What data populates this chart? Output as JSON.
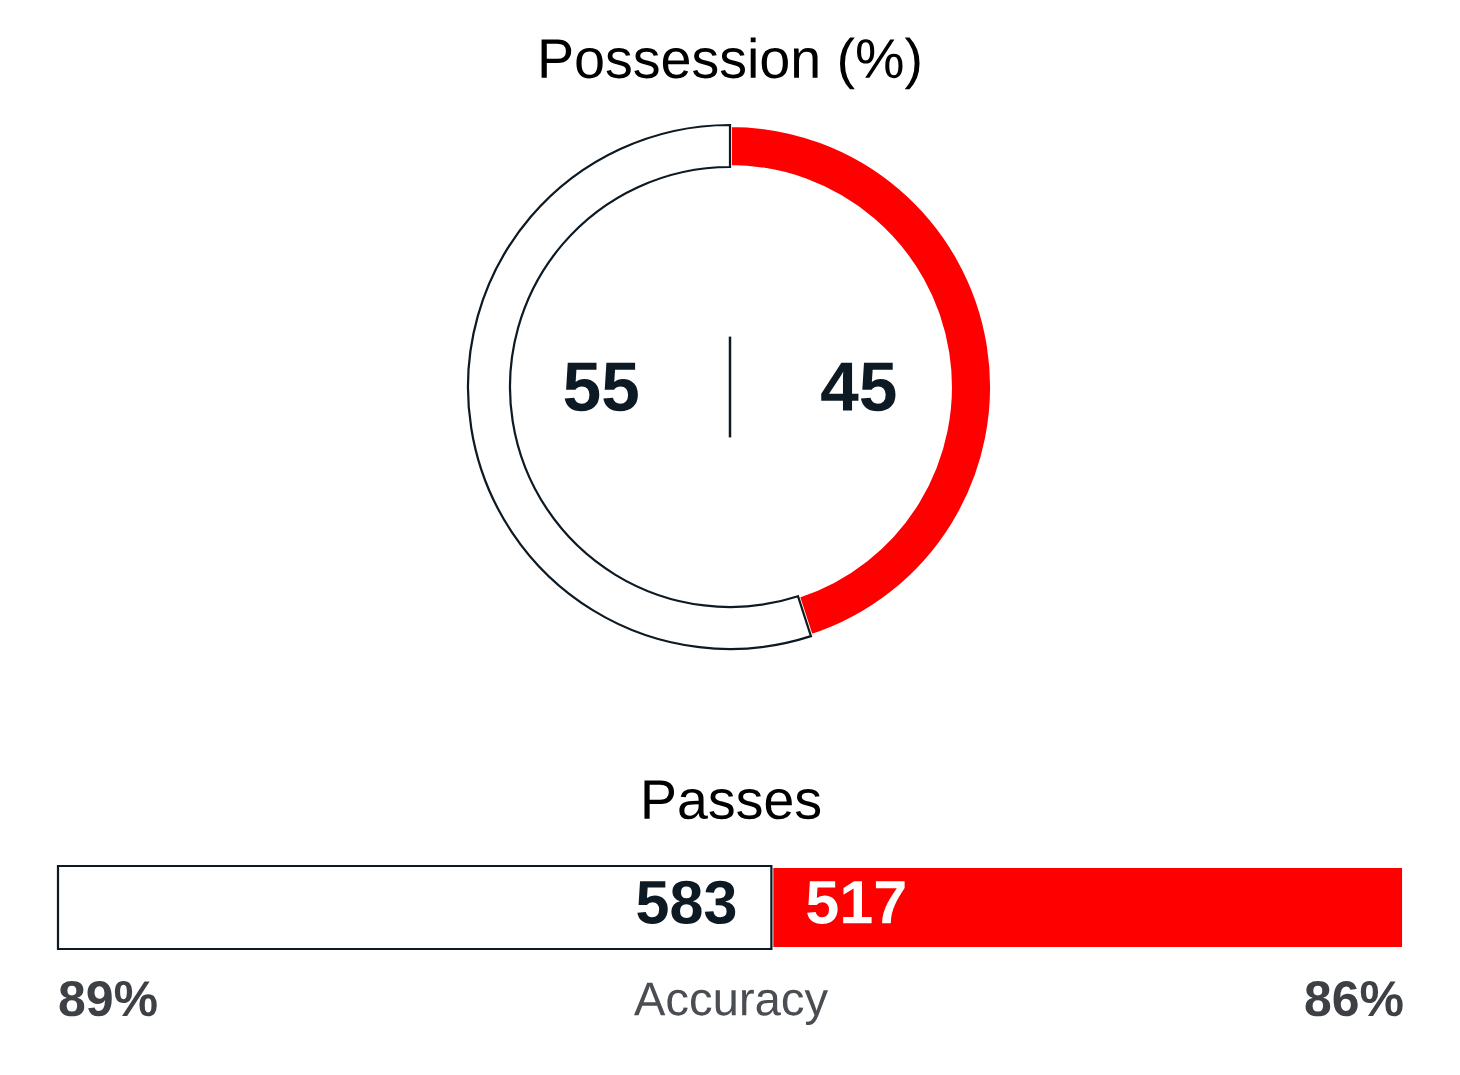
{
  "chart_data": [
    {
      "type": "donut",
      "title": "Possession (%)",
      "categories": [
        null,
        null
      ],
      "values": [
        55,
        45
      ],
      "colors": [
        "#ffffff",
        "#ff0000"
      ],
      "data_labels": true
    },
    {
      "type": "bar",
      "title": "Passes",
      "orientation": "horizontal",
      "stacked": true,
      "categories": [
        null
      ],
      "series": [
        {
          "color": "#ffffff",
          "values": [
            583
          ]
        },
        {
          "color": "#ff0000",
          "values": [
            517
          ]
        }
      ],
      "data_labels": true,
      "tick_labels": false,
      "annotations": [
        "89%",
        "Accuracy",
        "86%"
      ]
    }
  ]
}
